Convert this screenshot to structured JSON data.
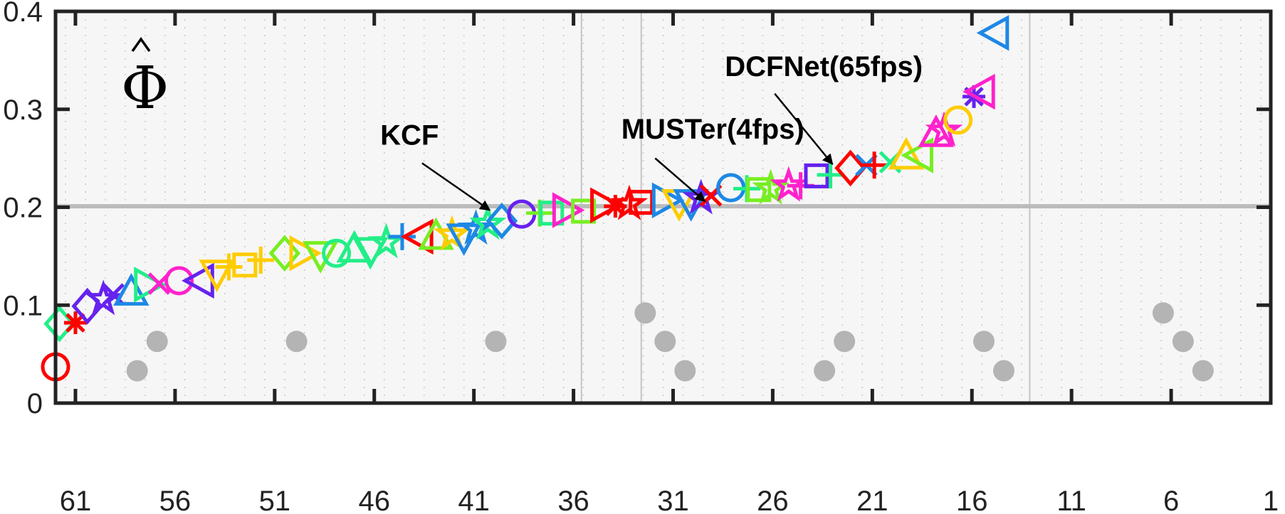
{
  "chart_data": {
    "type": "scatter",
    "title": "",
    "xlabel": "",
    "ylabel": "Φ̂",
    "xlim": [
      62,
      1
    ],
    "ylim": [
      0,
      0.4
    ],
    "x_ticks": [
      61,
      56,
      51,
      46,
      41,
      36,
      31,
      26,
      21,
      16,
      11,
      6,
      1
    ],
    "x_tick_labels": [
      "61",
      "56",
      "51",
      "46",
      "41",
      "36",
      "31",
      "26",
      "21",
      "16",
      "11",
      "6",
      "1"
    ],
    "y_ticks": [
      0,
      0.1,
      0.2,
      0.3,
      0.4
    ],
    "y_tick_labels": [
      "0",
      "0.1",
      "0.2",
      "0.3",
      "0.4"
    ],
    "grid": "dotted",
    "reference_line": 0.201,
    "reference_line_color": "#bbbbbb",
    "points": [
      {
        "x": 62,
        "y": 0.037,
        "marker": "circle",
        "color": "#ff0000"
      },
      {
        "x": 61.8,
        "y": 0.081,
        "marker": "diamond",
        "color": "#22ee88"
      },
      {
        "x": 61,
        "y": 0.082,
        "marker": "asterisk",
        "color": "#ff0000"
      },
      {
        "x": 60.4,
        "y": 0.099,
        "marker": "diamond",
        "color": "#6622ee"
      },
      {
        "x": 59.6,
        "y": 0.106,
        "marker": "star",
        "color": "#6622ee"
      },
      {
        "x": 59.1,
        "y": 0.111,
        "marker": "x",
        "color": "#6622ee"
      },
      {
        "x": 58.2,
        "y": 0.113,
        "marker": "triangle-up",
        "color": "#1e88e5"
      },
      {
        "x": 57.4,
        "y": 0.121,
        "marker": "triangle-right",
        "color": "#22ee88"
      },
      {
        "x": 56.8,
        "y": 0.122,
        "marker": "x",
        "color": "#ff22cc"
      },
      {
        "x": 55.8,
        "y": 0.125,
        "marker": "circle",
        "color": "#ff22cc"
      },
      {
        "x": 54.7,
        "y": 0.125,
        "marker": "triangle-left",
        "color": "#6622ee"
      },
      {
        "x": 53.9,
        "y": 0.133,
        "marker": "triangle-down",
        "color": "#ffcc00"
      },
      {
        "x": 53.3,
        "y": 0.139,
        "marker": "plus",
        "color": "#ffcc00"
      },
      {
        "x": 52.5,
        "y": 0.141,
        "marker": "square",
        "color": "#ffcc00"
      },
      {
        "x": 51.7,
        "y": 0.146,
        "marker": "plus",
        "color": "#ffcc00"
      },
      {
        "x": 50.5,
        "y": 0.153,
        "marker": "diamond",
        "color": "#77ee22"
      },
      {
        "x": 49.6,
        "y": 0.153,
        "marker": "triangle-right",
        "color": "#ffcc00"
      },
      {
        "x": 48.7,
        "y": 0.152,
        "marker": "triangle-down",
        "color": "#77ee22"
      },
      {
        "x": 47.9,
        "y": 0.153,
        "marker": "circle",
        "color": "#22ee88"
      },
      {
        "x": 47.0,
        "y": 0.157,
        "marker": "triangle-up",
        "color": "#22ee88"
      },
      {
        "x": 46.2,
        "y": 0.156,
        "marker": "triangle-down",
        "color": "#22ee88"
      },
      {
        "x": 45.4,
        "y": 0.164,
        "marker": "star",
        "color": "#22ee88"
      },
      {
        "x": 44.6,
        "y": 0.17,
        "marker": "plus",
        "color": "#1e88e5"
      },
      {
        "x": 43.7,
        "y": 0.17,
        "marker": "triangle-left",
        "color": "#ff0000"
      },
      {
        "x": 42.9,
        "y": 0.17,
        "marker": "triangle-up",
        "color": "#77ee22"
      },
      {
        "x": 42.1,
        "y": 0.172,
        "marker": "star",
        "color": "#ffcc00"
      },
      {
        "x": 41.5,
        "y": 0.17,
        "marker": "triangle-down",
        "color": "#1e88e5"
      },
      {
        "x": 40.9,
        "y": 0.178,
        "marker": "star",
        "color": "#1e88e5"
      },
      {
        "x": 40.3,
        "y": 0.183,
        "marker": "star",
        "color": "#22ee88"
      },
      {
        "x": 39.6,
        "y": 0.186,
        "marker": "diamond",
        "color": "#1e88e5"
      },
      {
        "x": 38.6,
        "y": 0.193,
        "marker": "circle",
        "color": "#6622ee"
      },
      {
        "x": 37.7,
        "y": 0.194,
        "marker": "plus",
        "color": "#77ee22"
      },
      {
        "x": 37.1,
        "y": 0.194,
        "marker": "square",
        "color": "#22ee88"
      },
      {
        "x": 36.4,
        "y": 0.197,
        "marker": "triangle-right",
        "color": "#ff22cc"
      },
      {
        "x": 35.5,
        "y": 0.196,
        "marker": "square",
        "color": "#77ee22"
      },
      {
        "x": 34.5,
        "y": 0.202,
        "marker": "triangle-right",
        "color": "#ff0000"
      },
      {
        "x": 33.9,
        "y": 0.201,
        "marker": "asterisk",
        "color": "#ff0000"
      },
      {
        "x": 33.2,
        "y": 0.203,
        "marker": "star",
        "color": "#ff0000"
      },
      {
        "x": 32.6,
        "y": 0.205,
        "marker": "square",
        "color": "#ff0000"
      },
      {
        "x": 31.4,
        "y": 0.207,
        "marker": "triangle-right",
        "color": "#1e88e5"
      },
      {
        "x": 30.7,
        "y": 0.205,
        "marker": "triangle-down",
        "color": "#ffcc00"
      },
      {
        "x": 30.1,
        "y": 0.205,
        "marker": "triangle-down",
        "color": "#1e88e5"
      },
      {
        "x": 29.6,
        "y": 0.209,
        "marker": "star",
        "color": "#6622ee"
      },
      {
        "x": 29.1,
        "y": 0.212,
        "marker": "x",
        "color": "#ff0000"
      },
      {
        "x": 28.1,
        "y": 0.22,
        "marker": "circle",
        "color": "#1e88e5"
      },
      {
        "x": 27.3,
        "y": 0.219,
        "marker": "plus",
        "color": "#22ee88"
      },
      {
        "x": 26.7,
        "y": 0.218,
        "marker": "square",
        "color": "#77ee22"
      },
      {
        "x": 26.1,
        "y": 0.219,
        "marker": "star",
        "color": "#77ee22"
      },
      {
        "x": 25.2,
        "y": 0.222,
        "marker": "star",
        "color": "#ff22cc"
      },
      {
        "x": 24.6,
        "y": 0.222,
        "marker": "plus",
        "color": "#ff22cc"
      },
      {
        "x": 23.8,
        "y": 0.232,
        "marker": "square",
        "color": "#6622ee"
      },
      {
        "x": 23.1,
        "y": 0.233,
        "marker": "plus",
        "color": "#22ee88"
      },
      {
        "x": 22.1,
        "y": 0.24,
        "marker": "diamond",
        "color": "#ff0000"
      },
      {
        "x": 21.3,
        "y": 0.243,
        "marker": "x",
        "color": "#1e88e5"
      },
      {
        "x": 20.9,
        "y": 0.243,
        "marker": "plus",
        "color": "#ff0000"
      },
      {
        "x": 20.1,
        "y": 0.246,
        "marker": "x",
        "color": "#22ee88"
      },
      {
        "x": 19.3,
        "y": 0.252,
        "marker": "triangle-up",
        "color": "#ffcc00"
      },
      {
        "x": 18.6,
        "y": 0.253,
        "marker": "triangle-left",
        "color": "#77ee22"
      },
      {
        "x": 17.8,
        "y": 0.275,
        "marker": "triangle-up",
        "color": "#ff22cc"
      },
      {
        "x": 17.4,
        "y": 0.278,
        "marker": "star",
        "color": "#ff22cc"
      },
      {
        "x": 16.7,
        "y": 0.289,
        "marker": "circle",
        "color": "#ffcc00"
      },
      {
        "x": 15.9,
        "y": 0.313,
        "marker": "asterisk",
        "color": "#6622ee"
      },
      {
        "x": 15.5,
        "y": 0.318,
        "marker": "triangle-left",
        "color": "#ff22cc"
      },
      {
        "x": 14.8,
        "y": 0.378,
        "marker": "triangle-left",
        "color": "#1e88e5"
      }
    ],
    "gray_dots": [
      {
        "x": 57.9,
        "y": 0.033
      },
      {
        "x": 56.9,
        "y": 0.063
      },
      {
        "x": 49.9,
        "y": 0.063
      },
      {
        "x": 39.9,
        "y": 0.063
      },
      {
        "x": 32.4,
        "y": 0.092
      },
      {
        "x": 31.4,
        "y": 0.063
      },
      {
        "x": 30.4,
        "y": 0.033
      },
      {
        "x": 23.4,
        "y": 0.033
      },
      {
        "x": 22.4,
        "y": 0.063
      },
      {
        "x": 15.4,
        "y": 0.063
      },
      {
        "x": 14.4,
        "y": 0.033
      },
      {
        "x": 6.4,
        "y": 0.092
      },
      {
        "x": 5.4,
        "y": 0.063
      },
      {
        "x": 4.4,
        "y": 0.033
      }
    ],
    "annotations": [
      {
        "text": "KCF",
        "text_x": 45.7,
        "text_y": 0.264,
        "arrow_from": [
          43.6,
          0.245
        ],
        "arrow_to": [
          40.2,
          0.197
        ]
      },
      {
        "text": "MUSTer(4fps)",
        "text_x": 33.6,
        "text_y": 0.27,
        "arrow_from": [
          31.9,
          0.25
        ],
        "arrow_to": [
          29.4,
          0.206
        ]
      },
      {
        "text": "DCFNet(65fps)",
        "text_x": 28.4,
        "text_y": 0.334,
        "arrow_from": [
          25.9,
          0.316
        ],
        "arrow_to": [
          23.0,
          0.244
        ]
      }
    ],
    "vertical_lines": [
      35.6,
      32.6,
      13.1
    ]
  },
  "phi_symbol": "Φ"
}
